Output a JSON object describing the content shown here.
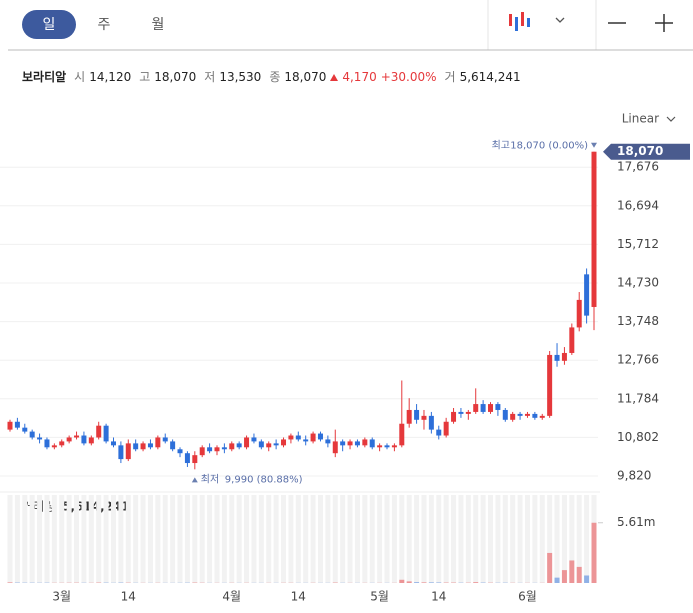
{
  "header": {
    "tabs": [
      "일",
      "주",
      "월"
    ]
  },
  "quote": {
    "name": "보라티알",
    "items": [
      {
        "label": "시",
        "value": "14,120"
      },
      {
        "label": "고",
        "value": "18,070"
      },
      {
        "label": "저",
        "value": "13,530"
      },
      {
        "label": "종",
        "value": "18,070"
      }
    ],
    "change": "4,170",
    "change_pct": "+30.00%",
    "volume_label": "거",
    "volume": "5,614,241"
  },
  "chart_data": {
    "type": "candlestick",
    "scale": "Linear",
    "categories": [
      null,
      null,
      null,
      null,
      null,
      null,
      null,
      "3월",
      null,
      null,
      null,
      null,
      null,
      null,
      null,
      null,
      "14",
      null,
      null,
      null,
      null,
      null,
      null,
      null,
      null,
      null,
      null,
      null,
      null,
      null,
      "4월",
      null,
      null,
      null,
      null,
      null,
      null,
      null,
      null,
      "14",
      null,
      null,
      null,
      null,
      null,
      null,
      null,
      null,
      null,
      null,
      "5월",
      null,
      null,
      null,
      null,
      null,
      null,
      null,
      "14",
      null,
      null,
      null,
      null,
      null,
      null,
      null,
      null,
      null,
      null,
      null,
      "6월",
      null,
      null,
      null,
      null,
      null,
      null,
      null,
      null,
      null
    ],
    "open": [
      11000,
      11200,
      11050,
      10950,
      10800,
      10750,
      10550,
      10600,
      10700,
      10800,
      10850,
      10650,
      10800,
      11100,
      10700,
      10600,
      10250,
      10650,
      10500,
      10650,
      10550,
      10800,
      10700,
      10500,
      10400,
      10150,
      10350,
      10550,
      10450,
      10550,
      10500,
      10650,
      10550,
      10800,
      10700,
      10550,
      10650,
      10600,
      10750,
      10850,
      10750,
      10700,
      10900,
      10750,
      10400,
      10700,
      10600,
      10700,
      10600,
      10750,
      10550,
      10600,
      10550,
      10600,
      11150,
      11500,
      11250,
      11350,
      11000,
      10850,
      11200,
      11450,
      11400,
      11450,
      11650,
      11450,
      11650,
      11500,
      11250,
      11400,
      11350,
      11400,
      11300,
      11350,
      12900,
      12750,
      12950,
      13600,
      14950,
      14120
    ],
    "high": [
      11250,
      11300,
      11150,
      11000,
      10900,
      10800,
      10650,
      10750,
      10850,
      10950,
      10950,
      10850,
      11200,
      11150,
      10800,
      10700,
      10750,
      10750,
      10700,
      10750,
      10850,
      10900,
      10750,
      10550,
      10450,
      10450,
      10600,
      10650,
      10600,
      10650,
      10700,
      10700,
      10850,
      10900,
      10750,
      10700,
      10750,
      10800,
      10900,
      10950,
      10850,
      10950,
      10950,
      10850,
      11000,
      10750,
      10750,
      10750,
      10800,
      10800,
      10650,
      10650,
      10650,
      12250,
      11800,
      11650,
      11500,
      11450,
      11100,
      11300,
      11550,
      11550,
      11500,
      12050,
      11750,
      11700,
      11700,
      11550,
      11450,
      11450,
      11450,
      11450,
      11400,
      13000,
      13200,
      13100,
      13700,
      14500,
      15100,
      18070
    ],
    "low": [
      10950,
      11000,
      10900,
      10750,
      10650,
      10500,
      10500,
      10550,
      10650,
      10750,
      10600,
      10600,
      10750,
      10650,
      10550,
      10150,
      10200,
      10450,
      10450,
      10500,
      10500,
      10650,
      10450,
      10300,
      10050,
      9990,
      10300,
      10400,
      10350,
      10400,
      10450,
      10500,
      10500,
      10650,
      10500,
      10450,
      10500,
      10550,
      10650,
      10700,
      10600,
      10650,
      10700,
      10550,
      10300,
      10450,
      10500,
      10550,
      10550,
      10500,
      10450,
      10500,
      10450,
      10550,
      11050,
      11150,
      11000,
      10900,
      10750,
      10800,
      11150,
      11300,
      11250,
      11400,
      11400,
      11400,
      11350,
      11200,
      11200,
      11250,
      11300,
      11250,
      11250,
      11300,
      12600,
      12650,
      12900,
      13500,
      13700,
      13530
    ],
    "close": [
      11200,
      11050,
      10950,
      10800,
      10750,
      10550,
      10600,
      10700,
      10800,
      10850,
      10650,
      10800,
      11100,
      10700,
      10600,
      10250,
      10650,
      10500,
      10650,
      10550,
      10800,
      10700,
      10500,
      10400,
      10150,
      10350,
      10550,
      10450,
      10550,
      10500,
      10650,
      10550,
      10800,
      10700,
      10550,
      10650,
      10600,
      10750,
      10850,
      10750,
      10700,
      10900,
      10750,
      10650,
      10700,
      10600,
      10700,
      10600,
      10750,
      10550,
      10600,
      10550,
      10600,
      11150,
      11500,
      11250,
      11350,
      11000,
      10850,
      11200,
      11450,
      11400,
      11450,
      11650,
      11450,
      11650,
      11500,
      11250,
      11400,
      11350,
      11400,
      11300,
      11350,
      12900,
      12750,
      12950,
      13600,
      14300,
      13900,
      18070
    ],
    "volume": [
      60000,
      40000,
      30000,
      30000,
      25000,
      30000,
      20000,
      20000,
      25000,
      30000,
      25000,
      20000,
      40000,
      35000,
      20000,
      40000,
      30000,
      20000,
      15000,
      15000,
      20000,
      15000,
      15000,
      20000,
      30000,
      40000,
      25000,
      15000,
      15000,
      15000,
      20000,
      15000,
      20000,
      15000,
      15000,
      15000,
      15000,
      20000,
      20000,
      15000,
      15000,
      20000,
      15000,
      15000,
      40000,
      20000,
      15000,
      15000,
      15000,
      15000,
      15000,
      15000,
      15000,
      300000,
      150000,
      80000,
      60000,
      60000,
      50000,
      40000,
      40000,
      30000,
      30000,
      80000,
      40000,
      30000,
      25000,
      30000,
      20000,
      15000,
      15000,
      15000,
      15000,
      2800000,
      500000,
      1200000,
      2100000,
      1500000,
      700000,
      5614241
    ],
    "ylim": [
      9464,
      18495
    ],
    "yticks": [
      {
        "value": 9820,
        "label": "9,820"
      },
      {
        "value": 10802,
        "label": "10,802"
      },
      {
        "value": 11784,
        "label": "11,784"
      },
      {
        "value": 12766,
        "label": "12,766"
      },
      {
        "value": 13748,
        "label": "13,748"
      },
      {
        "value": 14730,
        "label": "14,730"
      },
      {
        "value": 15712,
        "label": "15,712"
      },
      {
        "value": 16694,
        "label": "16,694"
      },
      {
        "value": 17676,
        "label": "17,676"
      }
    ],
    "volume_ylim": [
      0,
      8200000
    ],
    "volume_yticks": [
      {
        "value": 5614241,
        "label": "5.61m"
      }
    ],
    "volume_title": "거래량",
    "volume_value": "5,614,241",
    "last_label": "18,070",
    "max_annotation": {
      "label": "최고",
      "text": "18,070 (0.00%)"
    },
    "min_annotation": {
      "label": "최저",
      "text": "9,990 (80.88%)"
    },
    "up_color": "#e5383b",
    "down_color": "#2d6fd9",
    "grid": true
  }
}
